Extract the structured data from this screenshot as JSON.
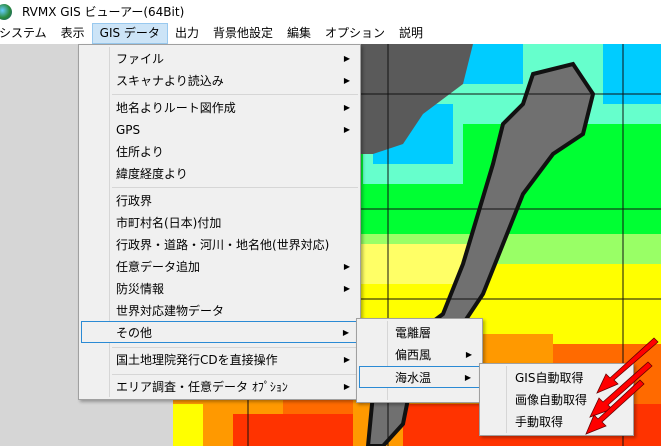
{
  "window": {
    "title": "RVMX GIS ビューアー(64Bit)",
    "icon": "globe-icon"
  },
  "menubar": {
    "items": [
      "システム",
      "表示",
      "GIS データ",
      "出力",
      "背景他設定",
      "編集",
      "オプション",
      "説明"
    ],
    "active": "GIS データ"
  },
  "gis_menu": {
    "items": [
      {
        "label": "ファイル",
        "submenu": true
      },
      {
        "label": "スキャナより読込み",
        "submenu": true
      },
      {
        "label": "地名よりルート図作成",
        "submenu": true
      },
      {
        "label": "GPS",
        "submenu": true
      },
      {
        "label": "住所より",
        "submenu": false
      },
      {
        "label": "緯度経度より",
        "submenu": false
      },
      {
        "label": "行政界",
        "submenu": false
      },
      {
        "label": "市町村名(日本)付加",
        "submenu": false
      },
      {
        "label": "行政界・道路・河川・地名他(世界対応)",
        "submenu": false
      },
      {
        "label": "任意データ追加",
        "submenu": true
      },
      {
        "label": "防災情報",
        "submenu": true
      },
      {
        "label": "世界対応建物データ",
        "submenu": false
      },
      {
        "label": "その他",
        "submenu": true,
        "highlighted": true
      },
      {
        "label": "国土地理院発行CDを直接操作",
        "submenu": true
      },
      {
        "label": "エリア調査・任意データ ｵﾌﾟｼｮﾝ",
        "submenu": true
      }
    ]
  },
  "other_menu": {
    "items": [
      {
        "label": "電離層",
        "submenu": false
      },
      {
        "label": "偏西風",
        "submenu": true
      },
      {
        "label": "海水温",
        "submenu": true,
        "highlighted": true
      }
    ]
  },
  "sst_menu": {
    "items": [
      {
        "label": "GIS自動取得"
      },
      {
        "label": "画像自動取得"
      },
      {
        "label": "手動取得"
      }
    ]
  },
  "arrow_glyph": "▶",
  "colors": {
    "highlight_border": "#2a8ad4",
    "menubar_active": "#cce4f7",
    "annotation_arrow": "#ff0000"
  }
}
